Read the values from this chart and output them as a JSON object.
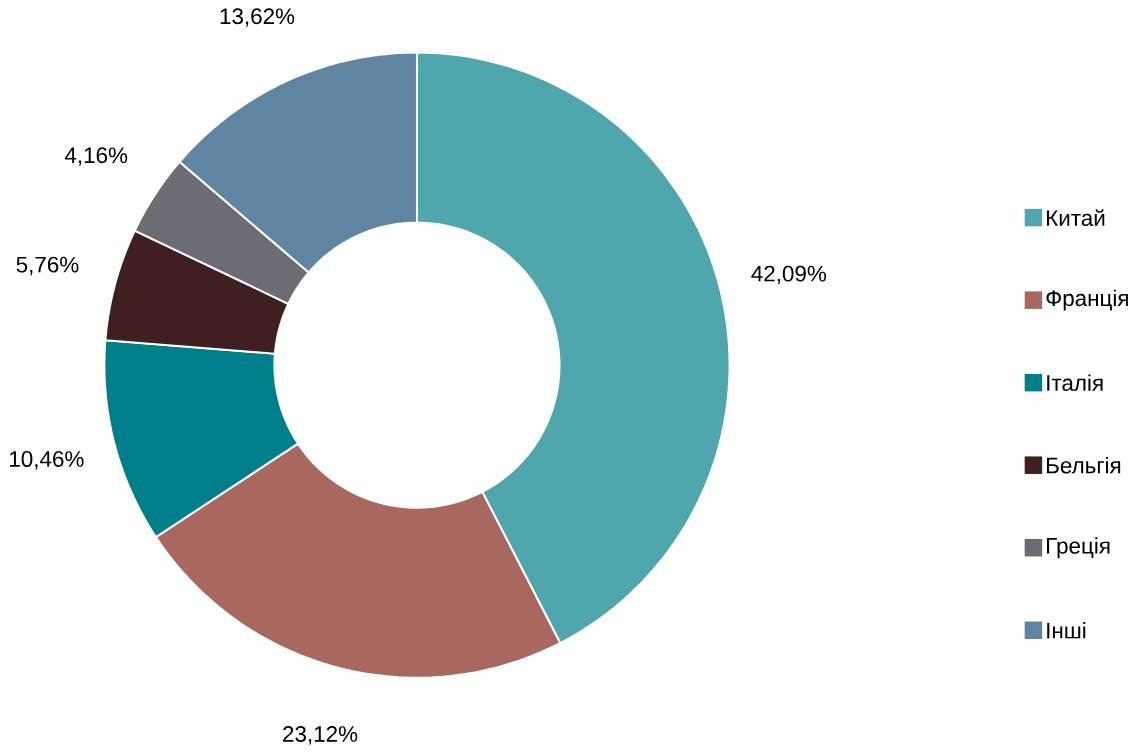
{
  "chart_data": {
    "type": "donut",
    "categories": [
      "Китай",
      "Франція",
      "Італія",
      "Бельгія",
      "Греція",
      "Інші"
    ],
    "values": [
      42.09,
      23.12,
      10.46,
      5.76,
      4.16,
      13.62
    ],
    "value_labels": [
      "42,09%",
      "23,12%",
      "10,46%",
      "5,76%",
      "4,16%",
      "13,62%"
    ],
    "colors": [
      "#4fa6ad",
      "#a8675f",
      "#007f8a",
      "#3f1f1f",
      "#6c6c74",
      "#5f85a2"
    ],
    "legend": "right"
  }
}
